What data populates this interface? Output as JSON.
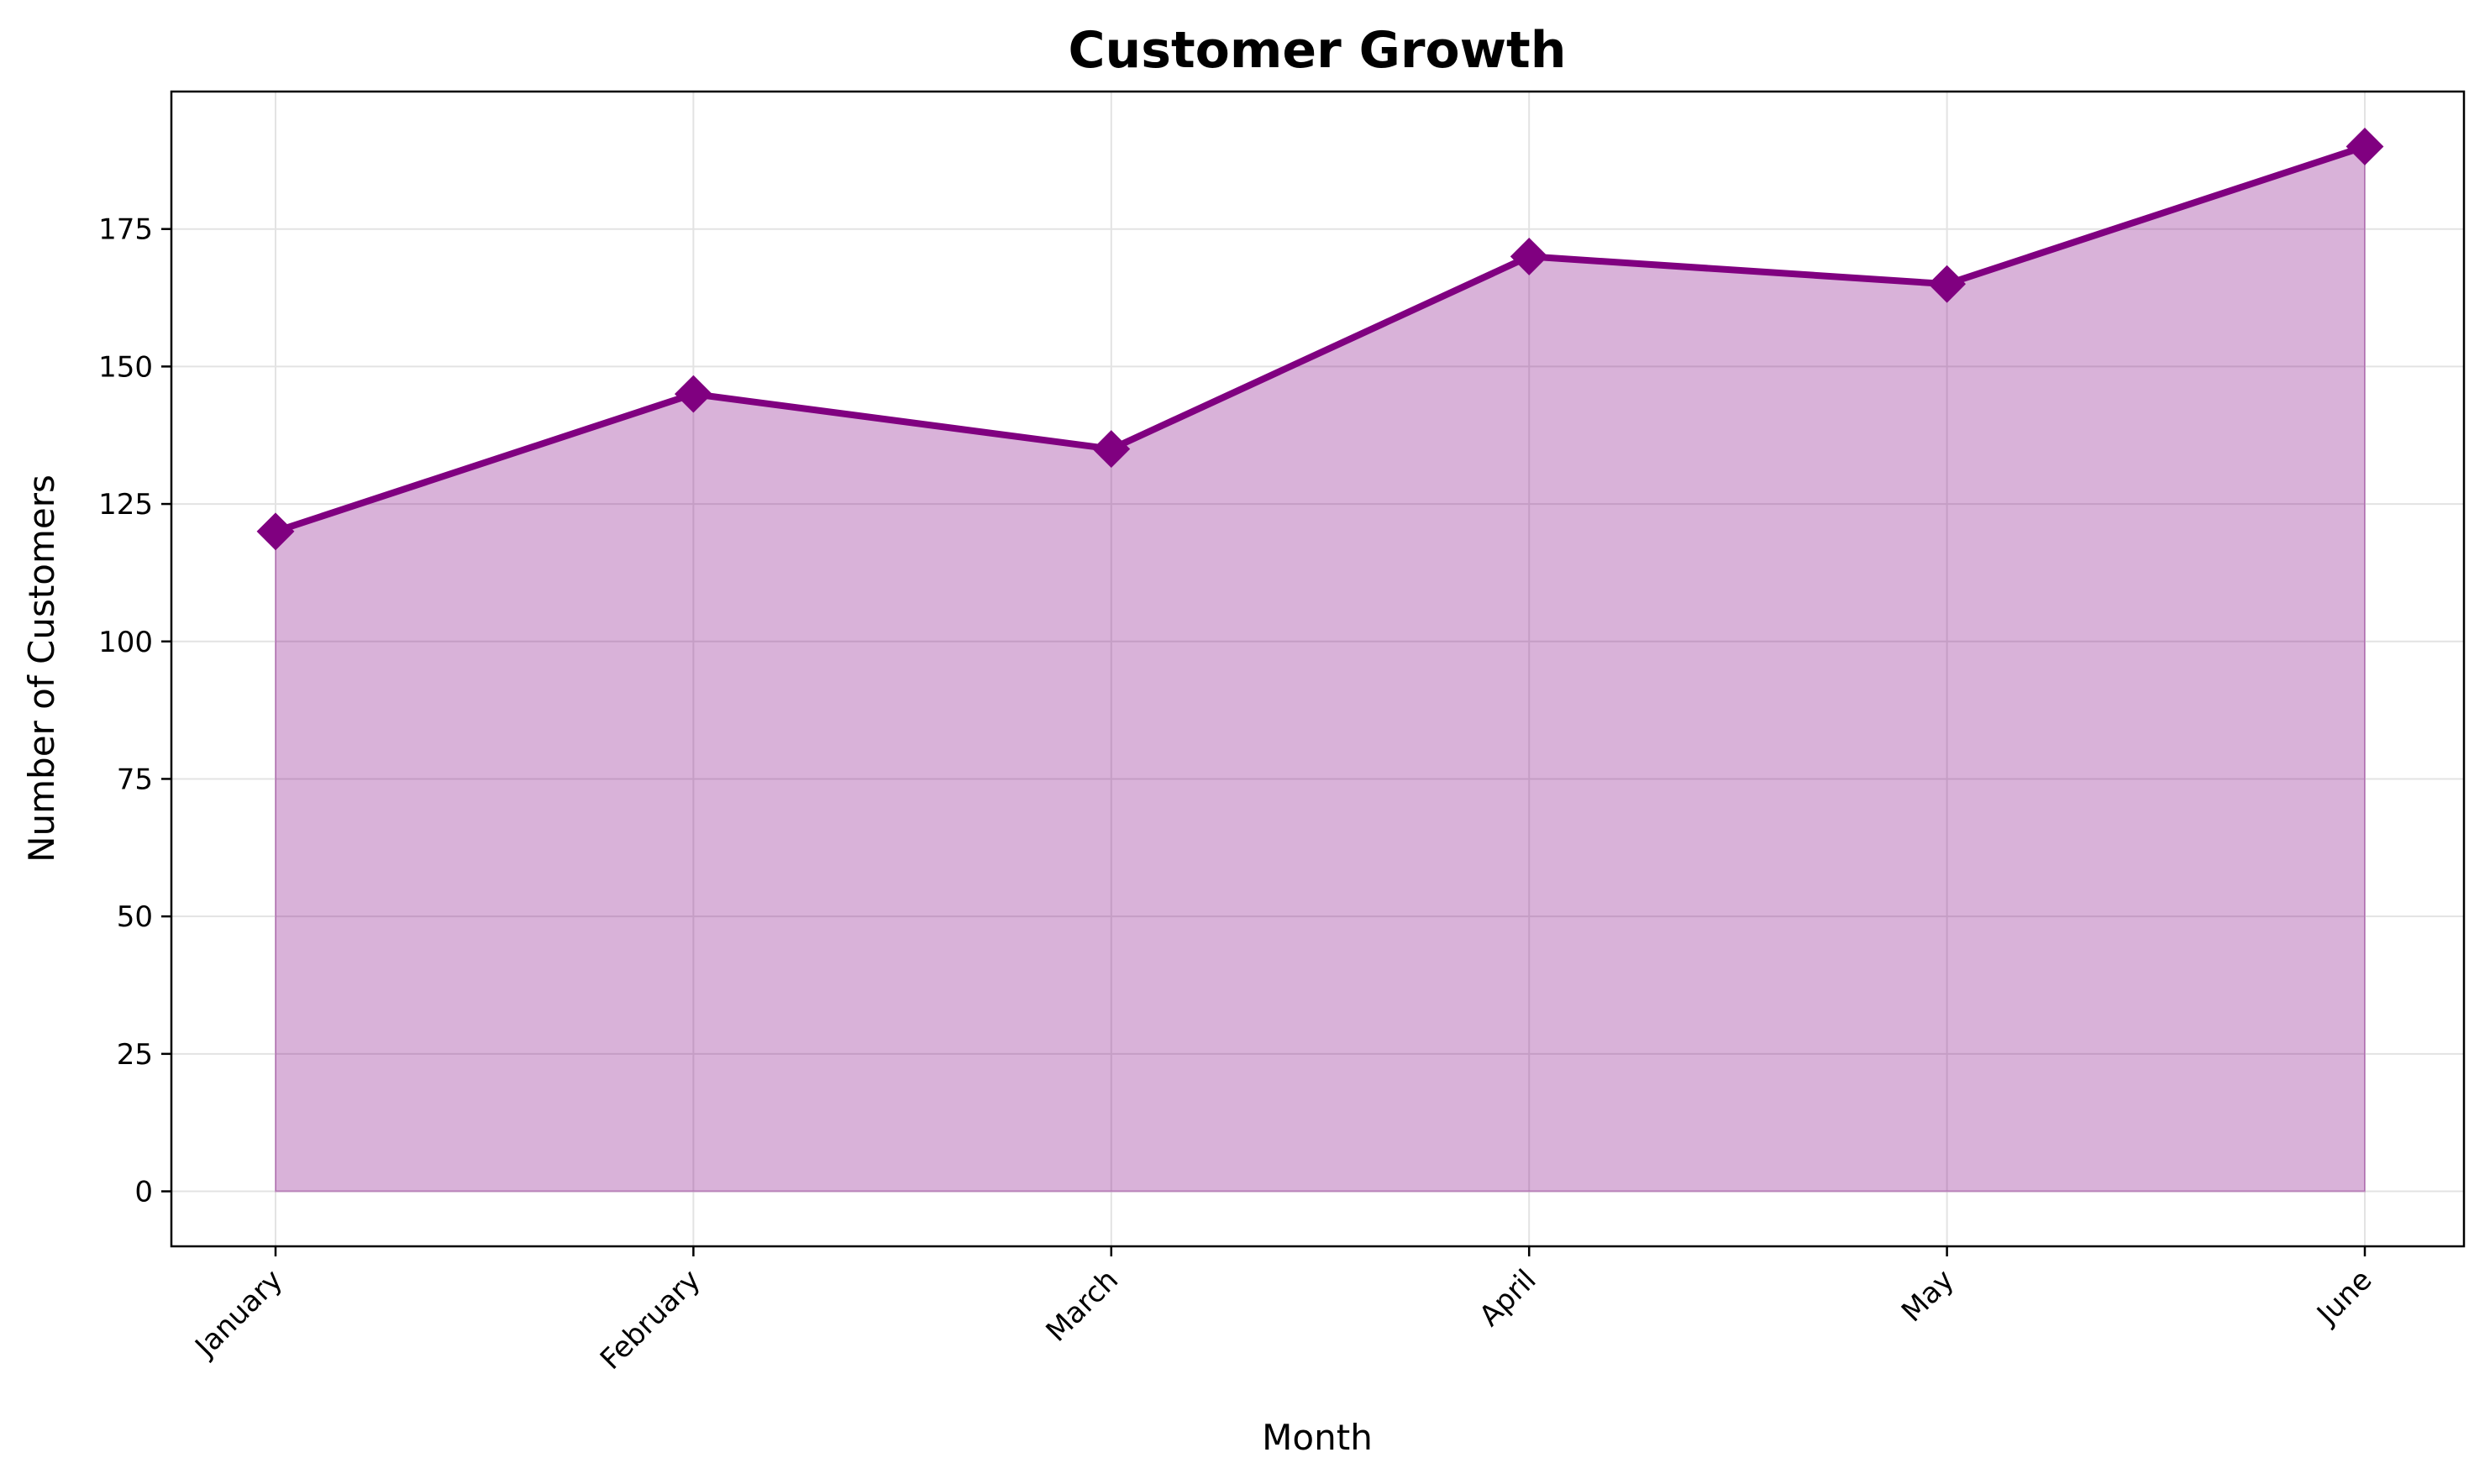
{
  "chart_data": {
    "type": "area",
    "title": "Customer Growth",
    "xlabel": "Month",
    "ylabel": "Number of Customers",
    "categories": [
      "January",
      "February",
      "March",
      "April",
      "May",
      "June"
    ],
    "series": [
      {
        "values": [
          120,
          145,
          135,
          170,
          165,
          190
        ]
      }
    ],
    "ylim": [
      -10,
      200
    ],
    "yticks": [
      0,
      25,
      50,
      75,
      100,
      125,
      150,
      175
    ],
    "grid": true,
    "legend": "none",
    "marker": "diamond",
    "colors": {
      "line": "#800080",
      "fill": "#d8b0d8",
      "grid": "#e3e3e3"
    }
  }
}
